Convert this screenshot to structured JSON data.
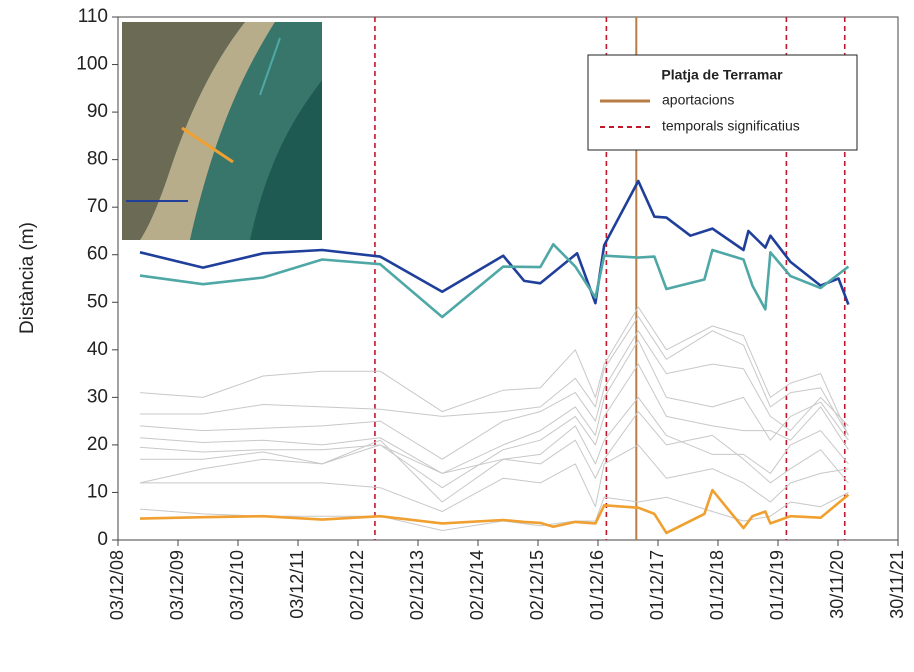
{
  "chart_data": {
    "type": "line",
    "y_label": "Distància (m)",
    "ylim": [
      0,
      110
    ],
    "yticks": [
      0,
      10,
      20,
      30,
      40,
      50,
      60,
      70,
      80,
      90,
      100,
      110
    ],
    "xlim": [
      "2008-12-03",
      "2021-11-30"
    ],
    "xticks": [
      {
        "value": "2008-12-03",
        "label": "03/12/08"
      },
      {
        "value": "2009-12-03",
        "label": "03/12/09"
      },
      {
        "value": "2010-12-03",
        "label": "03/12/10"
      },
      {
        "value": "2011-12-03",
        "label": "03/12/11"
      },
      {
        "value": "2012-12-02",
        "label": "02/12/12"
      },
      {
        "value": "2013-12-02",
        "label": "02/12/13"
      },
      {
        "value": "2014-12-02",
        "label": "02/12/14"
      },
      {
        "value": "2015-12-02",
        "label": "02/12/15"
      },
      {
        "value": "2016-12-01",
        "label": "01/12/16"
      },
      {
        "value": "2017-12-01",
        "label": "01/12/17"
      },
      {
        "value": "2018-12-01",
        "label": "01/12/18"
      },
      {
        "value": "2019-12-01",
        "label": "01/12/19"
      },
      {
        "value": "2020-11-30",
        "label": "30/11/20"
      },
      {
        "value": "2021-11-30",
        "label": "30/11/21"
      }
    ],
    "legend_title": "Platja de Terramar",
    "legend": "upper right",
    "events": [
      {
        "name": "aportacions",
        "color": "#b87c45",
        "style": "solid",
        "x": [
          "2017-07-22"
        ]
      },
      {
        "name": "temporals significatius",
        "color": "#c0182a",
        "style": "dashed",
        "x": [
          "2013-03-15",
          "2017-01-21",
          "2020-01-21",
          "2021-01-10"
        ]
      }
    ],
    "series": [
      {
        "color": "#c8c8c8",
        "x": [
          "2009-04-16",
          "2010-05-04",
          "2011-05-05",
          "2012-04-28",
          "2013-04-16",
          "2014-04-28",
          "2015-05-04",
          "2015-12-16",
          "2016-07-16",
          "2016-11-15",
          "2017-01-08",
          "2017-08-03",
          "2018-01-21",
          "2018-10-28",
          "2019-05-05",
          "2019-10-16",
          "2020-02-15",
          "2020-08-16",
          "2021-02-01"
        ],
        "values": [
          31,
          30,
          34.5,
          35.5,
          35.5,
          27,
          31.5,
          32,
          40,
          30,
          37,
          49,
          40,
          45,
          43,
          30,
          33,
          35,
          22
        ]
      },
      {
        "color": "#c8c8c8",
        "x": [
          "2009-04-16",
          "2010-05-04",
          "2011-05-05",
          "2012-04-28",
          "2013-04-16",
          "2014-04-28",
          "2015-05-04",
          "2015-12-16",
          "2016-07-16",
          "2016-11-15",
          "2017-01-08",
          "2017-08-03",
          "2018-01-21",
          "2018-10-28",
          "2019-05-05",
          "2019-10-16",
          "2020-02-15",
          "2020-08-16",
          "2021-02-01"
        ],
        "values": [
          26.5,
          26.5,
          28.5,
          28,
          27.5,
          26,
          27,
          28,
          34,
          28,
          36,
          47,
          38,
          44,
          41,
          28,
          31,
          32,
          22
        ]
      },
      {
        "color": "#c8c8c8",
        "x": [
          "2009-04-16",
          "2010-05-04",
          "2011-05-05",
          "2012-04-28",
          "2013-04-16",
          "2014-04-28",
          "2015-05-04",
          "2015-12-16",
          "2016-07-16",
          "2016-11-15",
          "2017-01-08",
          "2017-08-03",
          "2018-01-21",
          "2018-10-28",
          "2019-05-05",
          "2019-10-16",
          "2020-02-15",
          "2020-08-16",
          "2021-02-01"
        ],
        "values": [
          24,
          23,
          23.5,
          24,
          25,
          17,
          25,
          27,
          31,
          25,
          32,
          44,
          35,
          37,
          36,
          26,
          23,
          30,
          24
        ]
      },
      {
        "color": "#c8c8c8",
        "x": [
          "2009-04-16",
          "2010-05-04",
          "2011-05-05",
          "2012-04-28",
          "2013-04-16",
          "2014-04-28",
          "2015-05-04",
          "2015-12-16",
          "2016-07-16",
          "2016-11-15",
          "2017-01-08",
          "2017-08-03",
          "2018-01-21",
          "2018-10-28",
          "2019-05-05",
          "2019-10-16",
          "2020-02-15",
          "2020-08-16",
          "2021-02-01"
        ],
        "values": [
          21.5,
          20.5,
          21,
          20,
          21.5,
          14,
          20,
          23,
          28,
          22,
          30,
          42,
          30,
          28,
          30,
          21,
          26,
          29,
          21
        ]
      },
      {
        "color": "#c8c8c8",
        "x": [
          "2009-04-16",
          "2010-05-04",
          "2011-05-05",
          "2012-04-28",
          "2013-04-16",
          "2014-04-28",
          "2015-05-04",
          "2015-12-16",
          "2016-07-16",
          "2016-11-15",
          "2017-01-08",
          "2017-08-03",
          "2018-01-21",
          "2018-10-28",
          "2019-05-05",
          "2019-10-16",
          "2020-02-15",
          "2020-08-16",
          "2021-02-01"
        ],
        "values": [
          19.5,
          18.5,
          19,
          19,
          20,
          11,
          19,
          21,
          26,
          20,
          26,
          37,
          26,
          24,
          23,
          23,
          21,
          28,
          19
        ]
      },
      {
        "color": "#c8c8c8",
        "x": [
          "2009-04-16",
          "2010-05-04",
          "2011-05-05",
          "2012-04-28",
          "2013-04-16",
          "2014-04-28",
          "2015-05-04",
          "2015-12-16",
          "2016-07-16",
          "2016-11-15",
          "2017-01-08",
          "2017-08-03",
          "2018-01-21",
          "2018-10-28",
          "2019-05-05",
          "2019-10-16",
          "2020-02-15",
          "2020-08-16",
          "2021-02-01"
        ],
        "values": [
          17,
          17,
          18.5,
          16,
          20,
          14,
          17,
          18,
          24,
          16,
          21,
          30,
          22,
          18,
          18,
          14,
          20,
          23,
          16
        ]
      },
      {
        "color": "#c8c8c8",
        "x": [
          "2009-04-16",
          "2010-05-04",
          "2011-05-05",
          "2012-04-28",
          "2013-04-16",
          "2014-04-28",
          "2015-05-04",
          "2015-12-16",
          "2016-07-16",
          "2016-11-15",
          "2017-01-08",
          "2017-08-03",
          "2018-01-21",
          "2018-10-28",
          "2019-05-05",
          "2019-10-16",
          "2020-02-15",
          "2020-08-16",
          "2021-02-01"
        ],
        "values": [
          12,
          15,
          17,
          16,
          21,
          8,
          17,
          16,
          21,
          13,
          17,
          27,
          20,
          22,
          17,
          12,
          15,
          19,
          12
        ]
      },
      {
        "color": "#c8c8c8",
        "x": [
          "2009-04-16",
          "2010-05-04",
          "2011-05-05",
          "2012-04-28",
          "2013-04-16",
          "2014-04-28",
          "2015-05-04",
          "2015-12-16",
          "2016-07-16",
          "2016-11-15",
          "2017-01-08",
          "2017-08-03",
          "2018-01-21",
          "2018-10-28",
          "2019-05-05",
          "2019-10-16",
          "2020-02-15",
          "2020-08-16",
          "2021-02-01"
        ],
        "values": [
          12,
          12,
          12,
          12,
          11,
          6,
          13,
          12,
          16,
          7,
          16,
          20,
          13,
          15,
          12,
          8,
          12,
          14,
          15
        ]
      },
      {
        "color": "#c8c8c8",
        "x": [
          "2009-04-16",
          "2010-05-04",
          "2011-05-05",
          "2012-04-28",
          "2013-04-16",
          "2014-04-28",
          "2015-05-04",
          "2015-12-16",
          "2016-07-16",
          "2016-11-15",
          "2017-01-08",
          "2017-08-03",
          "2018-01-21",
          "2018-10-28",
          "2019-05-05",
          "2019-10-16",
          "2020-02-15",
          "2020-08-16",
          "2021-02-01"
        ],
        "values": [
          6.5,
          5.5,
          5,
          5,
          5,
          2,
          4,
          3,
          4,
          4,
          9,
          8,
          9,
          6,
          4,
          5,
          8,
          7,
          10
        ]
      },
      {
        "color": "#1f3f9a",
        "x": [
          "2009-04-16",
          "2010-05-04",
          "2011-05-05",
          "2012-04-28",
          "2013-04-16",
          "2014-04-28",
          "2015-05-04",
          "2015-09-09",
          "2015-12-16",
          "2016-07-27",
          "2016-11-15",
          "2017-01-08",
          "2017-08-03",
          "2017-11-09",
          "2018-01-21",
          "2018-06-16",
          "2018-10-28",
          "2019-05-05",
          "2019-06-04",
          "2019-09-15",
          "2019-10-16",
          "2020-02-15",
          "2020-08-16",
          "2020-12-03",
          "2021-02-01"
        ],
        "values": [
          60.5,
          57.3,
          60.3,
          61,
          59.6,
          52.2,
          59.8,
          54.5,
          54,
          60.3,
          49.8,
          62,
          75.5,
          68,
          67.8,
          64,
          65.5,
          61,
          65,
          61.5,
          64,
          58.5,
          53.5,
          55,
          49.5
        ]
      },
      {
        "color": "#4fa8a6",
        "x": [
          "2009-04-16",
          "2010-05-04",
          "2011-05-05",
          "2012-04-28",
          "2013-04-16",
          "2014-04-28",
          "2015-05-04",
          "2015-12-16",
          "2016-03-04",
          "2016-07-16",
          "2016-11-15",
          "2017-01-08",
          "2017-08-03",
          "2017-11-09",
          "2018-01-21",
          "2018-09-09",
          "2018-10-28",
          "2019-05-05",
          "2019-06-28",
          "2019-09-15",
          "2019-10-16",
          "2020-02-15",
          "2020-08-16",
          "2021-02-01"
        ],
        "values": [
          55.6,
          53.8,
          55.2,
          59,
          58,
          46.9,
          57.5,
          57.4,
          62.2,
          57.5,
          51,
          59.8,
          59.4,
          59.6,
          52.8,
          54.8,
          61,
          59,
          53.5,
          48.5,
          60.5,
          55.5,
          53,
          57.5
        ]
      },
      {
        "color": "#f0a030",
        "x": [
          "2009-04-16",
          "2010-05-04",
          "2011-05-05",
          "2012-04-28",
          "2013-04-16",
          "2014-04-28",
          "2015-05-04",
          "2015-09-09",
          "2015-12-16",
          "2016-03-04",
          "2016-07-16",
          "2016-11-15",
          "2017-01-08",
          "2017-08-03",
          "2017-11-09",
          "2018-01-21",
          "2018-09-09",
          "2018-10-28",
          "2019-05-05",
          "2019-06-28",
          "2019-09-15",
          "2019-10-16",
          "2020-02-15",
          "2020-08-16",
          "2021-02-01"
        ],
        "values": [
          4.5,
          4.8,
          5,
          4.3,
          5,
          3.5,
          4.2,
          3.8,
          3.6,
          2.8,
          3.8,
          3.5,
          7.3,
          6.8,
          5.5,
          1.5,
          5.5,
          10.5,
          2.5,
          5,
          6,
          3.5,
          5,
          4.7,
          9.5
        ]
      }
    ]
  }
}
